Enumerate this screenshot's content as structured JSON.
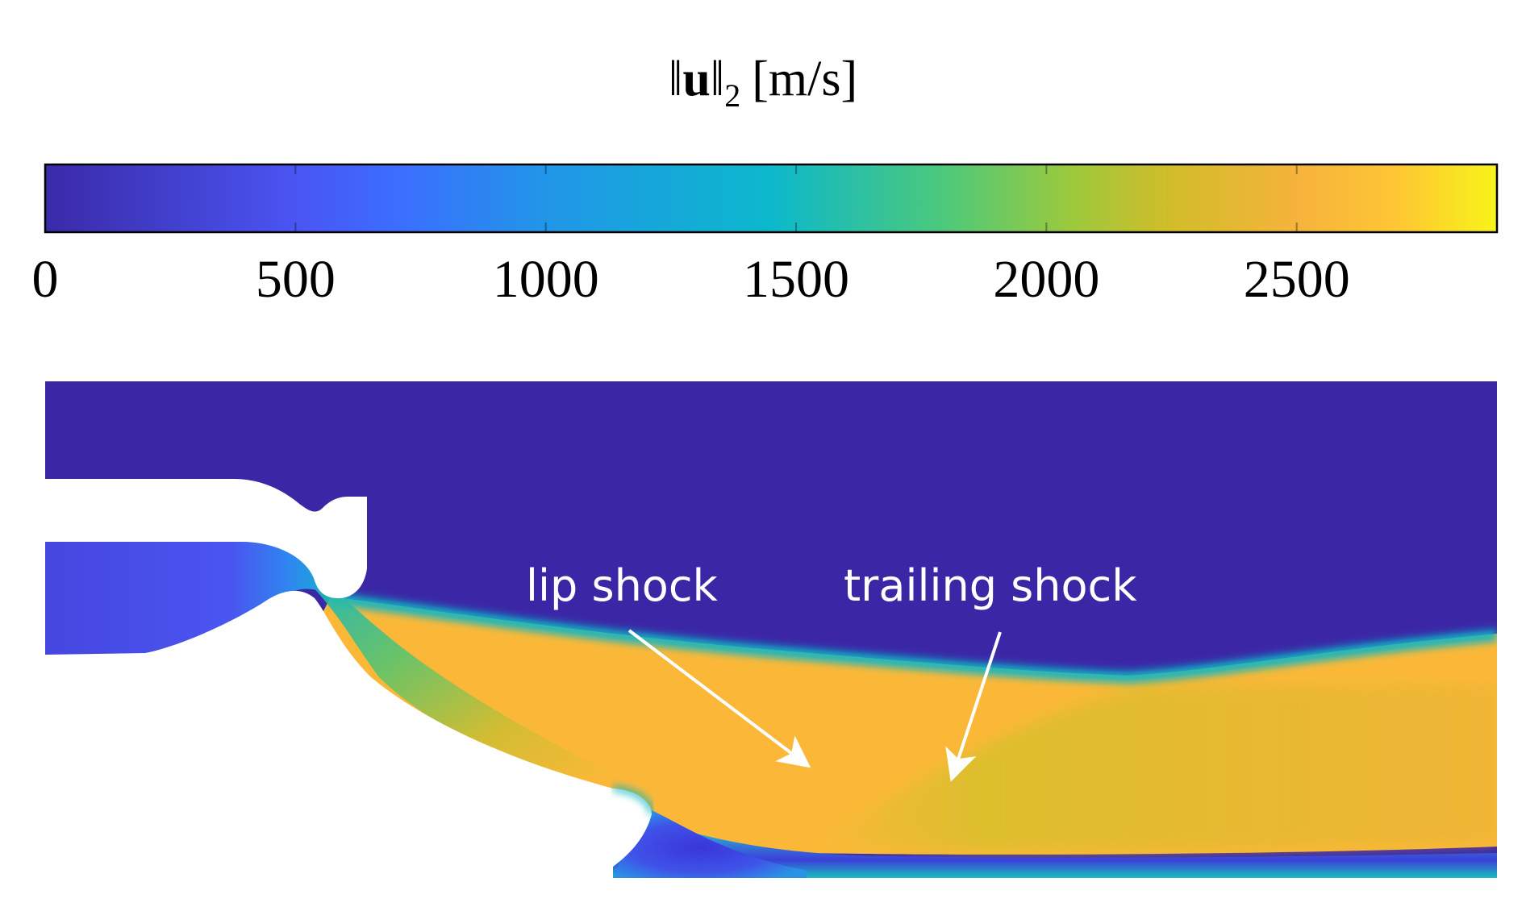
{
  "colorbar": {
    "title_pre": "‖",
    "title_vec": "u",
    "title_post": "‖",
    "title_sub": "2",
    "title_unit": "[m/s]",
    "range": [
      0,
      2900
    ],
    "ticks": [
      {
        "value": 0,
        "label": "0"
      },
      {
        "value": 500,
        "label": "500"
      },
      {
        "value": 1000,
        "label": "1000"
      },
      {
        "value": 1500,
        "label": "1500"
      },
      {
        "value": 2000,
        "label": "2000"
      },
      {
        "value": 2500,
        "label": "2500"
      }
    ],
    "colormap_stops": [
      {
        "value": 0,
        "color": "#3a2aa8"
      },
      {
        "value": 500,
        "color": "#4a55f2"
      },
      {
        "value": 700,
        "color": "#3c6dff"
      },
      {
        "value": 1000,
        "color": "#2196e8"
      },
      {
        "value": 1450,
        "color": "#0cb8cc"
      },
      {
        "value": 1800,
        "color": "#4ec97a"
      },
      {
        "value": 2050,
        "color": "#9cc93c"
      },
      {
        "value": 2250,
        "color": "#d2bc2a"
      },
      {
        "value": 2500,
        "color": "#f6b33c"
      },
      {
        "value": 2700,
        "color": "#fec634"
      },
      {
        "value": 2900,
        "color": "#f8f41a"
      }
    ]
  },
  "field_colors": {
    "ambient": "#3b27a6",
    "inner_flow": "#4646e0",
    "jet": "#fbb838",
    "jet_core": "#d7c02c",
    "jet_edge": "#10b6c4",
    "recirculation": "#3a36d8",
    "wall": "#ffffff"
  },
  "annotations": [
    {
      "label": "lip shock"
    },
    {
      "label": "trailing shock"
    }
  ]
}
